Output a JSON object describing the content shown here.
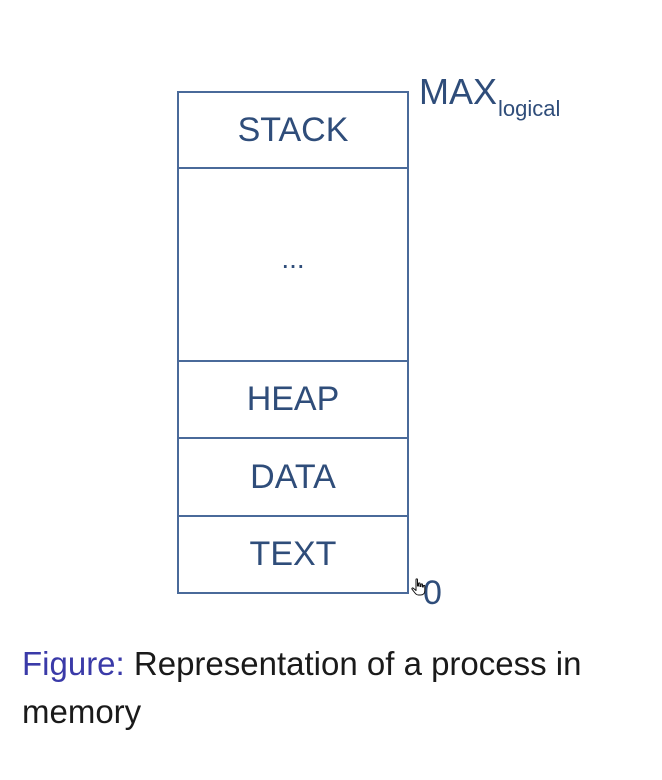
{
  "diagram": {
    "segments": {
      "stack": "STACK",
      "gap": "...",
      "heap": "HEAP",
      "data": "DATA",
      "text": "TEXT"
    },
    "max_label": {
      "main": "MAX",
      "subscript": "logical"
    },
    "zero_label": "0",
    "cursor_icon": "hand-pointer-icon"
  },
  "caption": {
    "label": "Figure:",
    "text": "Representation of a process in memory"
  },
  "colors": {
    "diagram": "#2f4d7a",
    "border": "#4a6a9a",
    "figure_label": "#3a3aa8",
    "caption_text": "#1a1a1a"
  }
}
